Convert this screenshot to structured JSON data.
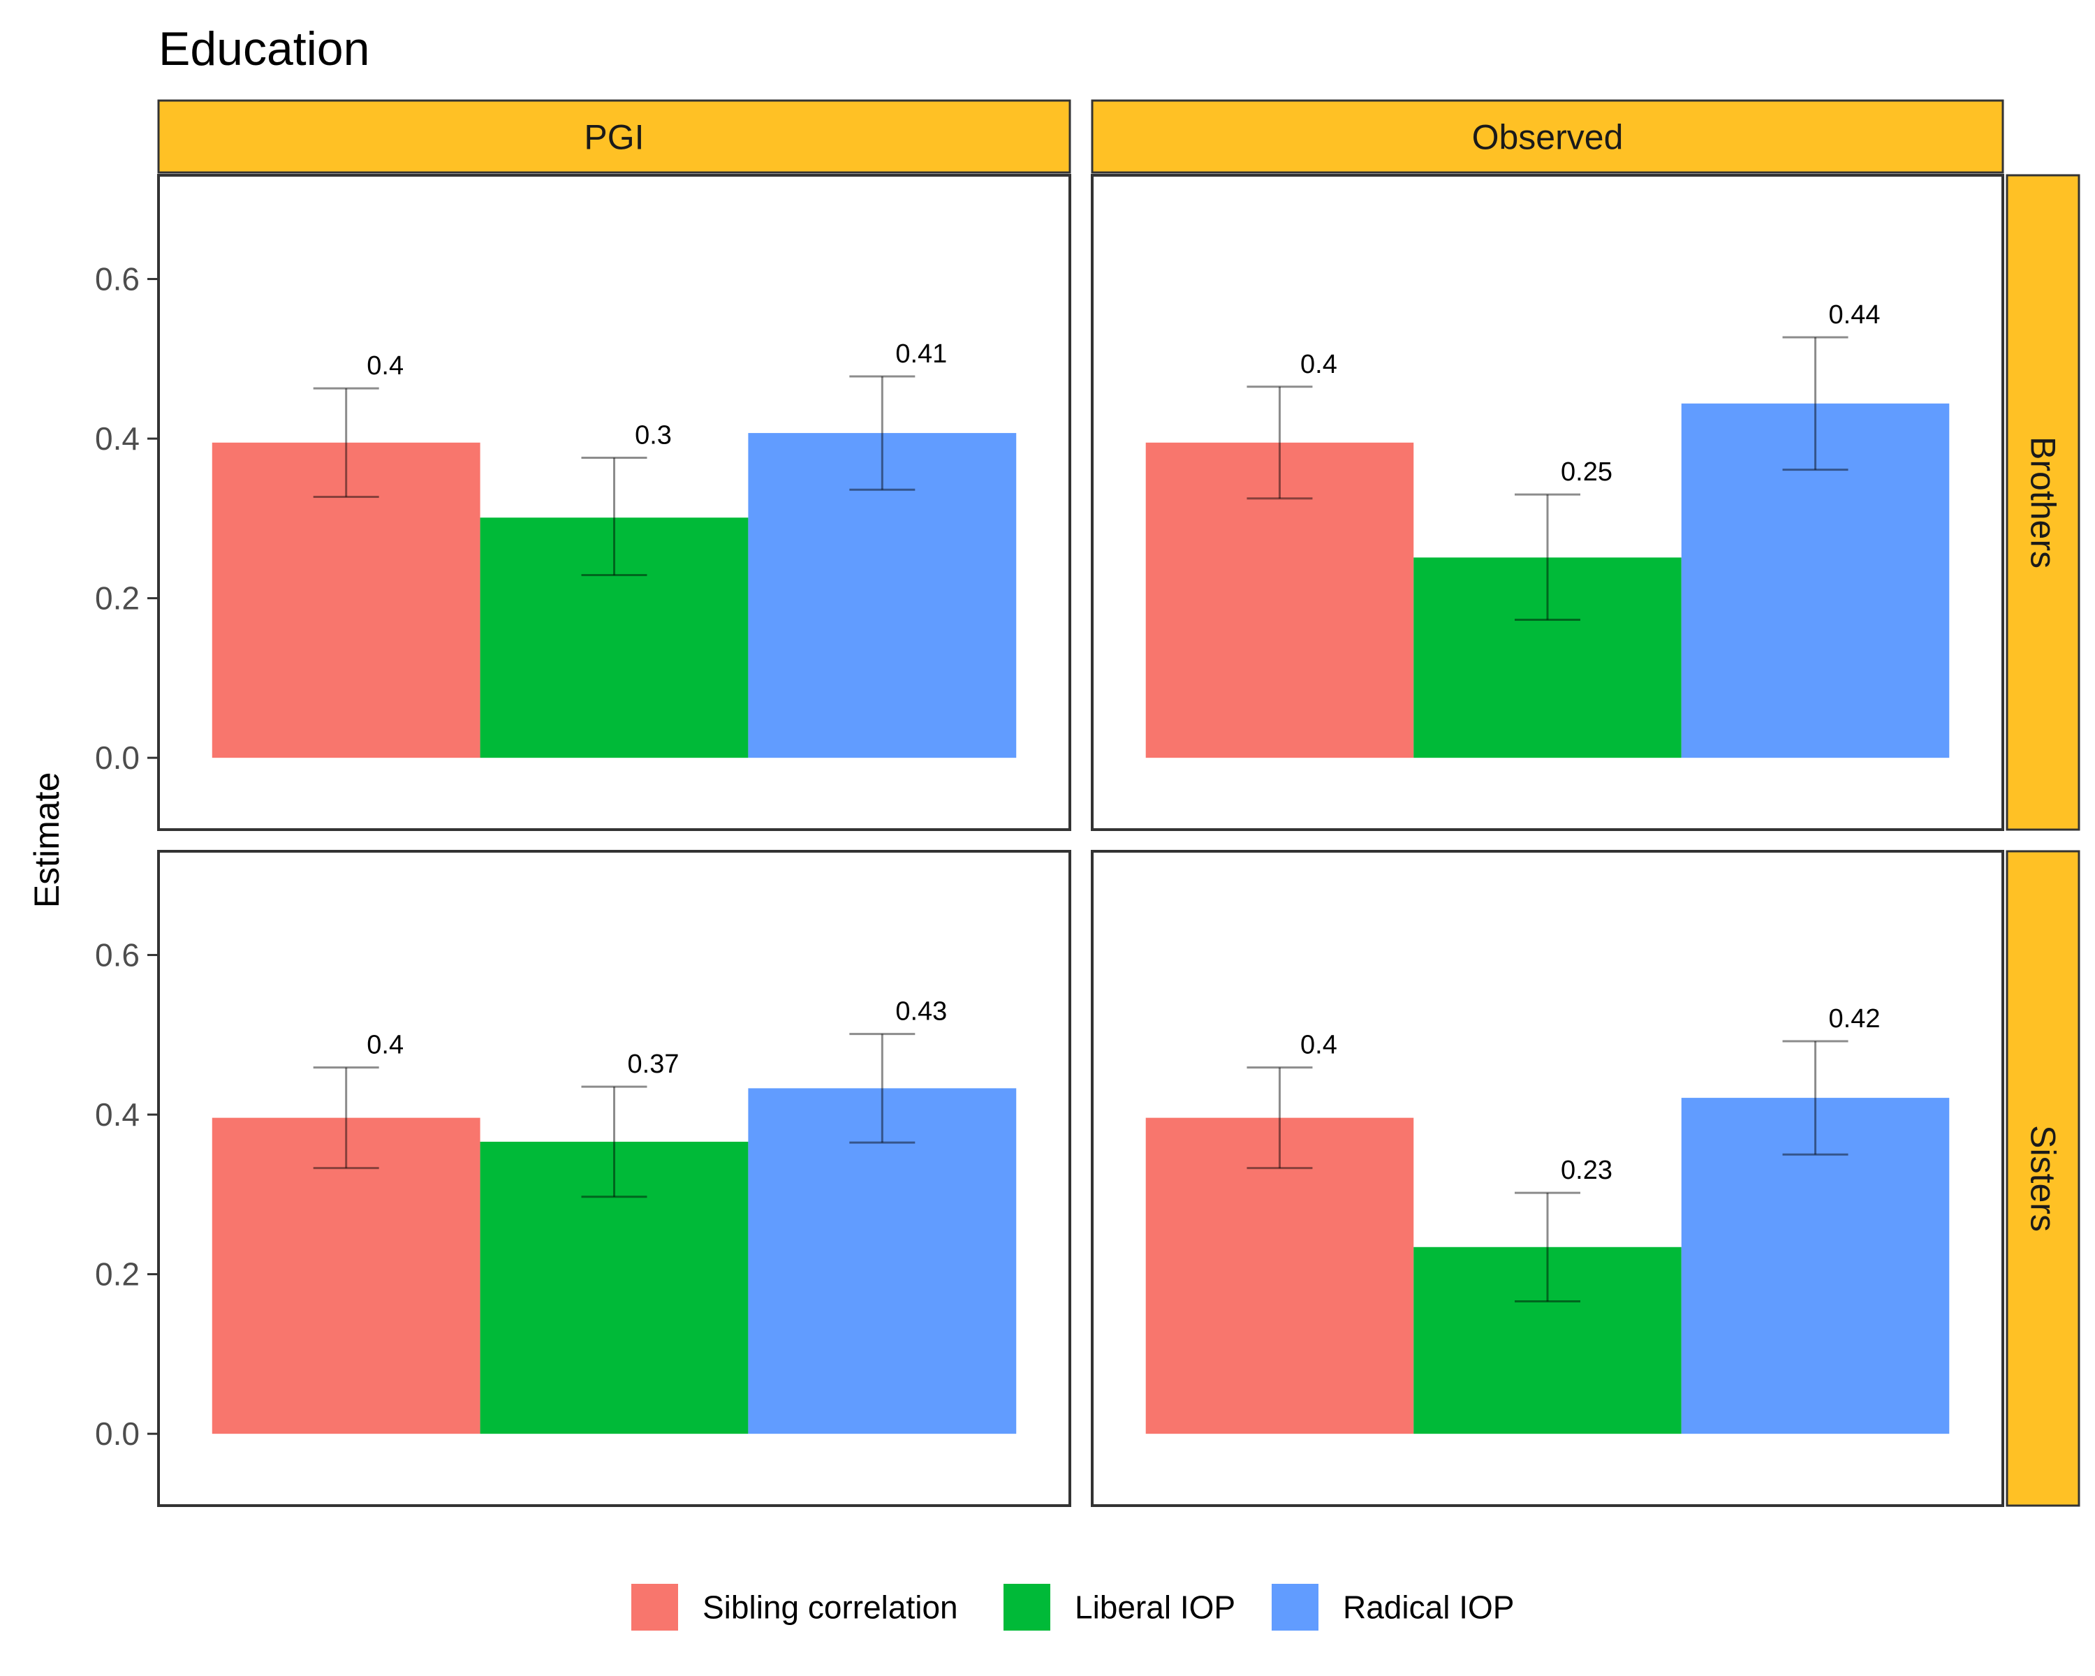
{
  "chart_data": {
    "type": "bar",
    "title": "Education",
    "ylabel": "Estimate",
    "xlabel": "",
    "ylim": [
      -0.09,
      0.73
    ],
    "yticks": [
      0.0,
      0.2,
      0.4,
      0.6
    ],
    "ytick_labels": [
      "0.0",
      "0.2",
      "0.4",
      "0.6"
    ],
    "column_facets": [
      "PGI",
      "Observed"
    ],
    "row_facets": [
      "Brothers",
      "Sisters"
    ],
    "series": [
      {
        "name": "Sibling correlation",
        "color": "#F8766D"
      },
      {
        "name": "Liberal IOP",
        "color": "#00BA38"
      },
      {
        "name": "Radical IOP",
        "color": "#619CFF"
      }
    ],
    "panels": [
      {
        "row": "Brothers",
        "col": "PGI",
        "values": [
          0.395,
          0.301,
          0.407
        ],
        "ci_low": [
          0.327,
          0.229,
          0.336
        ],
        "ci_high": [
          0.463,
          0.376,
          0.478
        ],
        "labels": [
          "0.4",
          "0.3",
          "0.41"
        ]
      },
      {
        "row": "Brothers",
        "col": "Observed",
        "values": [
          0.395,
          0.251,
          0.444
        ],
        "ci_low": [
          0.325,
          0.173,
          0.361
        ],
        "ci_high": [
          0.465,
          0.33,
          0.527
        ],
        "labels": [
          "0.4",
          "0.25",
          "0.44"
        ]
      },
      {
        "row": "Sisters",
        "col": "PGI",
        "values": [
          0.396,
          0.366,
          0.433
        ],
        "ci_low": [
          0.333,
          0.297,
          0.365
        ],
        "ci_high": [
          0.459,
          0.435,
          0.501
        ],
        "labels": [
          "0.4",
          "0.37",
          "0.43"
        ]
      },
      {
        "row": "Sisters",
        "col": "Observed",
        "values": [
          0.396,
          0.234,
          0.421
        ],
        "ci_low": [
          0.333,
          0.166,
          0.35
        ],
        "ci_high": [
          0.459,
          0.302,
          0.492
        ],
        "labels": [
          "0.4",
          "0.23",
          "0.42"
        ]
      }
    ],
    "strip_color": "#FFC125",
    "legend_position": "bottom",
    "grid": false
  }
}
